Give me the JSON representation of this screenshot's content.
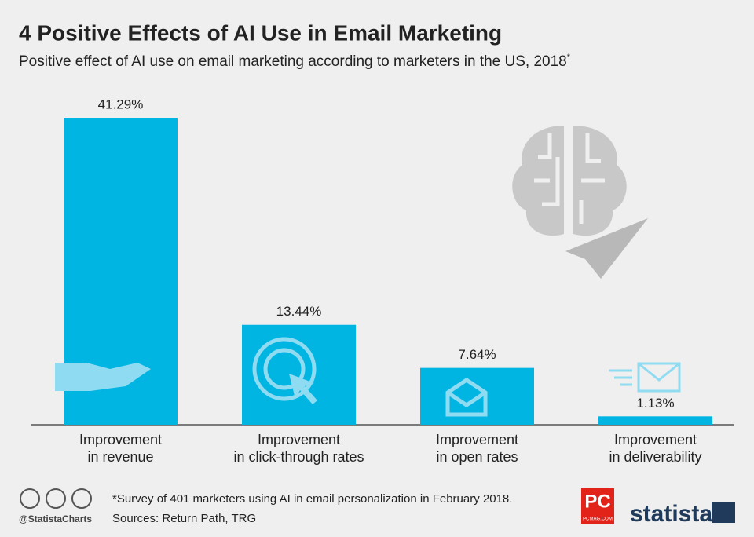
{
  "chart_data": {
    "type": "bar",
    "title": "4 Positive Effects of AI Use in Email Marketing",
    "subtitle": "Positive effect of AI use on email marketing according to marketers in the US, 2018",
    "subtitle_marker": "*",
    "categories": [
      [
        "Improvement",
        "in revenue"
      ],
      [
        "Improvement",
        "in click-through rates"
      ],
      [
        "Improvement",
        "in open rates"
      ],
      [
        "Improvement",
        "in deliverability"
      ]
    ],
    "values": [
      41.29,
      13.44,
      7.64,
      1.13
    ],
    "value_labels": [
      "41.29%",
      "13.44%",
      "7.64%",
      "1.13%"
    ],
    "color": "#00b5e2",
    "footnote": "*Survey of 401 marketers using AI in email personalization in February 2018.",
    "source": "Sources: Return Path, TRG",
    "credit": "@StatistaCharts",
    "logo": "PC",
    "logo_sub": "PCMAG.COM",
    "brand": "statista"
  }
}
